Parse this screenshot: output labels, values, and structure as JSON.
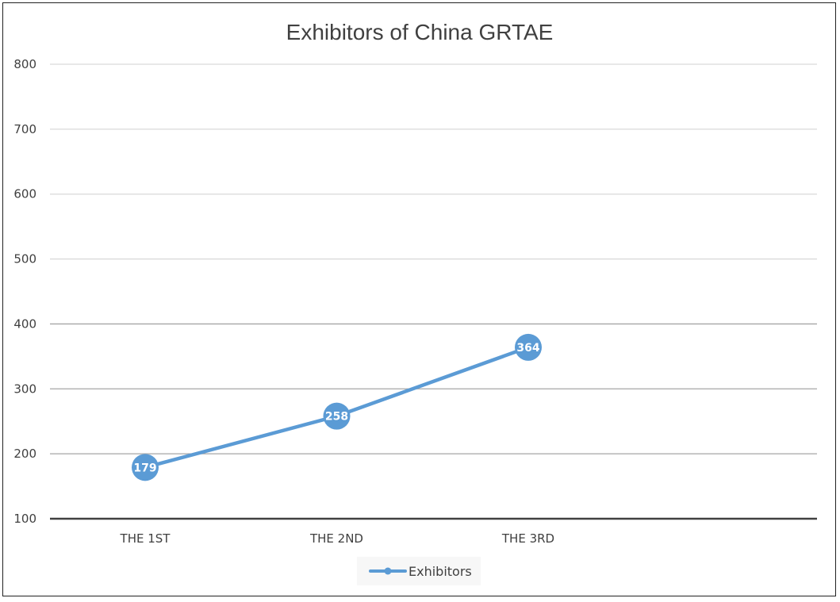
{
  "chart_data": {
    "type": "line",
    "title": "Exhibitors of China GRTAE",
    "categories": [
      "THE 1ST",
      "THE 2ND",
      "THE 3RD"
    ],
    "series": [
      {
        "name": "Exhibitors",
        "values": [
          179,
          258,
          364
        ],
        "color": "#5B9BD5"
      }
    ],
    "ylim": [
      100,
      800
    ],
    "yticks": [
      100,
      200,
      300,
      400,
      500,
      600,
      700,
      800
    ],
    "grid": true,
    "legend": "bottom",
    "xlabel": "",
    "ylabel": ""
  }
}
